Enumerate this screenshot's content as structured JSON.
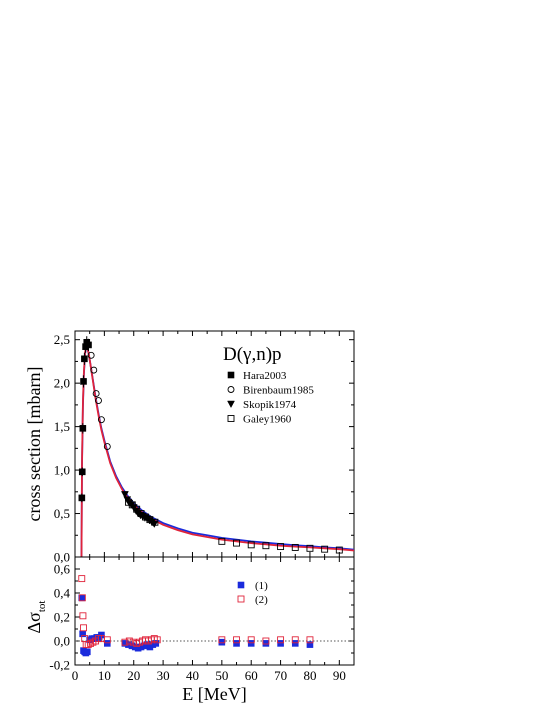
{
  "chart_data": [
    {
      "type": "scatter",
      "panel": "upper",
      "annotation": "D(γ,n)p",
      "xlabel": "",
      "ylabel": "cross section [mbarn]",
      "xlim": [
        0,
        95
      ],
      "ylim": [
        0,
        2.6
      ],
      "xticks": [
        0,
        10,
        20,
        30,
        40,
        50,
        60,
        70,
        80,
        90
      ],
      "yticks": [
        0.0,
        0.5,
        1.0,
        1.5,
        2.0,
        2.5
      ],
      "ytick_labels": [
        "0,0",
        "0,5",
        "1,0",
        "1,5",
        "2,0",
        "2,5"
      ],
      "legend_position": "top-right",
      "series": [
        {
          "name": "Hara2003",
          "marker": "filled-square",
          "x": [
            2.33,
            2.47,
            2.67,
            2.9,
            3.2,
            3.6,
            4.0,
            4.6
          ],
          "y": [
            0.68,
            0.98,
            1.48,
            2.02,
            2.28,
            2.42,
            2.47,
            2.44
          ],
          "yerr": [
            0.05,
            0.05,
            0.06,
            0.07,
            0.07,
            0.07,
            0.07,
            0.07
          ]
        },
        {
          "name": "Birenbaum1985",
          "marker": "open-circle",
          "x": [
            5.5,
            6.4,
            7.2,
            8.0,
            9.0,
            11.0
          ],
          "y": [
            2.32,
            2.15,
            1.88,
            1.8,
            1.58,
            1.27
          ]
        },
        {
          "name": "Skopik1974",
          "marker": "filled-triangle-down",
          "x": [
            17.0,
            17.8,
            18.5,
            19.2,
            20.0,
            20.8,
            21.5,
            22.3,
            23.0,
            23.8,
            24.6,
            25.4,
            26.2,
            27.0
          ],
          "y": [
            0.72,
            0.66,
            0.62,
            0.6,
            0.57,
            0.53,
            0.5,
            0.48,
            0.47,
            0.45,
            0.44,
            0.42,
            0.4,
            0.38
          ]
        },
        {
          "name": "Galey1960",
          "marker": "open-square",
          "x": [
            18.2,
            19.5,
            21.0,
            22.5,
            24.0,
            25.5,
            27.2,
            50.0,
            55.0,
            60.0,
            65.0,
            70.0,
            75.0,
            80.0,
            85.0,
            90.0
          ],
          "y": [
            0.63,
            0.6,
            0.55,
            0.5,
            0.46,
            0.43,
            0.4,
            0.18,
            0.16,
            0.14,
            0.13,
            0.12,
            0.11,
            0.1,
            0.09,
            0.08
          ]
        }
      ],
      "curves": [
        {
          "color": "#1a2bdc",
          "x": [
            2.22,
            2.4,
            2.7,
            3.0,
            3.4,
            3.8,
            4.2,
            4.6,
            5.0,
            6.0,
            7.0,
            8.0,
            9.0,
            10.0,
            12.0,
            14.0,
            16.0,
            18.0,
            20.0,
            23.0,
            26.0,
            30.0,
            35.0,
            40.0,
            45.0,
            50.0,
            55.0,
            60.0,
            65.0,
            70.0,
            75.0,
            80.0,
            85.0,
            90.0,
            95.0
          ],
          "y": [
            0.0,
            1.05,
            1.72,
            2.08,
            2.33,
            2.42,
            2.4,
            2.35,
            2.27,
            2.06,
            1.84,
            1.65,
            1.48,
            1.34,
            1.1,
            0.93,
            0.8,
            0.7,
            0.62,
            0.53,
            0.46,
            0.39,
            0.33,
            0.28,
            0.25,
            0.22,
            0.2,
            0.18,
            0.165,
            0.15,
            0.135,
            0.125,
            0.11,
            0.1,
            0.085
          ]
        },
        {
          "color": "#e0233a",
          "x": [
            2.22,
            2.4,
            2.7,
            3.0,
            3.4,
            3.8,
            4.2,
            4.6,
            5.0,
            6.0,
            7.0,
            8.0,
            9.0,
            10.0,
            12.0,
            14.0,
            16.0,
            18.0,
            20.0,
            23.0,
            26.0,
            30.0,
            35.0,
            40.0,
            45.0,
            50.0,
            55.0,
            60.0,
            65.0,
            70.0,
            75.0,
            80.0,
            85.0,
            90.0,
            95.0
          ],
          "y": [
            0.0,
            1.08,
            1.76,
            2.1,
            2.35,
            2.43,
            2.41,
            2.35,
            2.27,
            2.05,
            1.82,
            1.63,
            1.46,
            1.32,
            1.08,
            0.91,
            0.78,
            0.68,
            0.6,
            0.51,
            0.44,
            0.37,
            0.31,
            0.26,
            0.23,
            0.2,
            0.18,
            0.16,
            0.145,
            0.13,
            0.12,
            0.11,
            0.1,
            0.09,
            0.075
          ]
        }
      ]
    },
    {
      "type": "scatter",
      "panel": "lower",
      "xlabel": "E [MeV]",
      "ylabel": "Δσ",
      "ylabel_sub": "tot",
      "xlim": [
        0,
        95
      ],
      "ylim": [
        -0.2,
        0.7
      ],
      "xticks": [
        0,
        10,
        20,
        30,
        40,
        50,
        60,
        70,
        80,
        90
      ],
      "yticks": [
        -0.2,
        0.0,
        0.2,
        0.4,
        0.6
      ],
      "ytick_labels": [
        "-0,2",
        "0,0",
        "0,2",
        "0,4",
        "0,6"
      ],
      "reference_line": 0,
      "legend_position": "top-right",
      "series": [
        {
          "name": "(1)",
          "marker": "filled-square",
          "color": "#1a2bdc",
          "x": [
            2.3,
            2.6,
            2.9,
            3.3,
            3.7,
            4.2,
            5.0,
            5.8,
            6.6,
            7.4,
            8.2,
            9.0,
            11.0,
            17.0,
            18.2,
            19.4,
            20.5,
            21.5,
            22.5,
            23.5,
            24.5,
            25.5,
            26.5,
            27.5,
            50.0,
            55.0,
            60.0,
            65.0,
            70.0,
            75.0,
            80.0
          ],
          "y": [
            0.36,
            0.06,
            -0.08,
            -0.09,
            -0.1,
            -0.09,
            0.01,
            0.02,
            0.02,
            0.03,
            0.03,
            0.05,
            -0.02,
            -0.02,
            -0.03,
            -0.04,
            -0.05,
            -0.06,
            -0.05,
            -0.04,
            -0.03,
            -0.05,
            -0.03,
            -0.02,
            -0.01,
            -0.02,
            -0.02,
            -0.02,
            -0.02,
            -0.02,
            -0.03
          ]
        },
        {
          "name": "(2)",
          "marker": "open-square",
          "color": "#e0233a",
          "x": [
            2.3,
            2.5,
            2.7,
            2.9,
            3.3,
            3.8,
            4.5,
            5.3,
            6.1,
            7.0,
            8.0,
            9.0,
            11.0,
            17.0,
            18.5,
            19.8,
            21.0,
            22.0,
            23.0,
            24.0,
            25.0,
            26.0,
            27.0,
            28.0,
            50.0,
            55.0,
            60.0,
            65.0,
            70.0,
            75.0,
            80.0
          ],
          "y": [
            0.52,
            0.36,
            0.21,
            0.11,
            0.02,
            -0.03,
            -0.03,
            -0.02,
            -0.01,
            0.0,
            0.02,
            0.02,
            0.01,
            -0.01,
            0.0,
            -0.01,
            -0.02,
            -0.01,
            0.0,
            0.01,
            0.0,
            0.01,
            0.02,
            0.01,
            0.01,
            0.01,
            0.01,
            0.0,
            0.01,
            0.01,
            0.01
          ]
        }
      ]
    }
  ]
}
